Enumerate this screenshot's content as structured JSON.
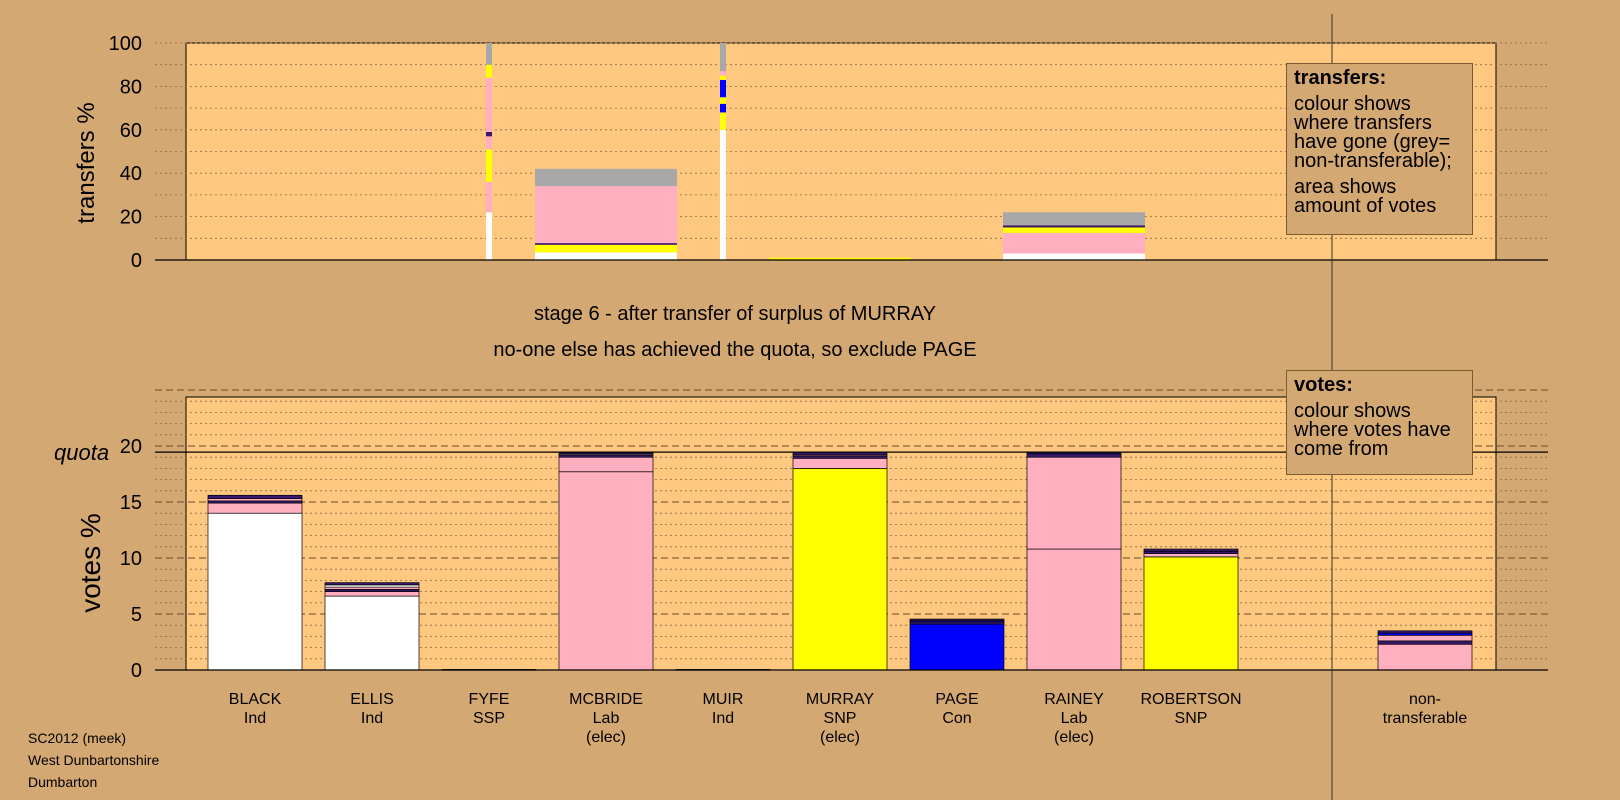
{
  "header": {
    "stage": "stage 6 - after transfer of surplus of MURRAY",
    "note": "no-one else has achieved the quota, so exclude PAGE"
  },
  "legends": {
    "transfers": {
      "title": "transfers:",
      "line1": "colour shows where transfers have gone (grey= non-transferable);",
      "line2": "area shows amount of votes"
    },
    "votes": {
      "title": "votes:",
      "line1": "colour shows where votes have come from"
    }
  },
  "footer": {
    "line1": "SC2012 (meek)",
    "line2": "West Dunbartonshire",
    "line3": "Dumbarton"
  },
  "colors": {
    "background": "#d4a872",
    "plot_background": "#ffc880",
    "Ind": "#ffffff",
    "SNP": "#ffff00",
    "Lab": "#ffafc0",
    "Con": "#0000ff",
    "SSP": "#800000",
    "non_transferable": "#a8a8a8",
    "other": "#3a1870"
  },
  "chart_data": [
    {
      "type": "bar",
      "stacked": true,
      "title": "",
      "ylabel": "transfers %",
      "ylim": [
        0,
        100
      ],
      "yticks": [
        0,
        20,
        40,
        60,
        80,
        100
      ],
      "grid": true,
      "legend_position": "top-right",
      "series": [
        {
          "from": "FYFE",
          "width": "thin",
          "segments": [
            {
              "color": "Ind",
              "value": 22
            },
            {
              "color": "Lab",
              "value": 14
            },
            {
              "color": "SNP",
              "value": 15
            },
            {
              "color": "Lab",
              "value": 6
            },
            {
              "color": "other",
              "value": 2
            },
            {
              "color": "Lab",
              "value": 25
            },
            {
              "color": "SNP",
              "value": 6
            },
            {
              "color": "non_transferable",
              "value": 10
            }
          ]
        },
        {
          "from": "MCBRIDE",
          "width": "wide",
          "segments": [
            {
              "color": "Ind",
              "value": 3.5
            },
            {
              "color": "SNP",
              "value": 3.5
            },
            {
              "color": "other",
              "value": 0.8
            },
            {
              "color": "Lab",
              "value": 26.2
            },
            {
              "color": "non_transferable",
              "value": 8
            }
          ]
        },
        {
          "from": "MUIR",
          "width": "thin",
          "segments": [
            {
              "color": "Ind",
              "value": 60
            },
            {
              "color": "SNP",
              "value": 8
            },
            {
              "color": "Con",
              "value": 4
            },
            {
              "color": "SNP",
              "value": 3
            },
            {
              "color": "Con",
              "value": 8
            },
            {
              "color": "SNP",
              "value": 2
            },
            {
              "color": "Lab",
              "value": 2
            },
            {
              "color": "non_transferable",
              "value": 13
            }
          ]
        },
        {
          "from": "MURRAY",
          "width": "wide",
          "segments": [
            {
              "color": "SNP",
              "value": 1
            }
          ]
        },
        {
          "from": "RAINEY",
          "width": "wide",
          "segments": [
            {
              "color": "Ind",
              "value": 3
            },
            {
              "color": "Lab",
              "value": 9.5
            },
            {
              "color": "SNP",
              "value": 2.5
            },
            {
              "color": "other",
              "value": 1
            },
            {
              "color": "non_transferable",
              "value": 6
            }
          ]
        }
      ]
    },
    {
      "type": "bar",
      "stacked": true,
      "title": "",
      "ylabel": "votes %",
      "ylim": [
        0,
        25
      ],
      "yticks": [
        0,
        5,
        10,
        15,
        20
      ],
      "quota": 19.45,
      "quota_label": "quota",
      "grid": true,
      "legend_position": "top-right",
      "categories": [
        [
          "BLACK",
          "Ind",
          ""
        ],
        [
          "ELLIS",
          "Ind",
          ""
        ],
        [
          "FYFE",
          "SSP",
          ""
        ],
        [
          "MCBRIDE",
          "Lab",
          "(elec)"
        ],
        [
          "MUIR",
          "Ind",
          ""
        ],
        [
          "MURRAY",
          "SNP",
          "(elec)"
        ],
        [
          "PAGE",
          "Con",
          ""
        ],
        [
          "RAINEY",
          "Lab",
          "(elec)"
        ],
        [
          "ROBERTSON",
          "SNP",
          ""
        ],
        [
          "",
          "",
          ""
        ],
        [
          "non-",
          "transferable",
          ""
        ]
      ],
      "stacks": [
        [
          {
            "color": "Ind",
            "value": 14.0
          },
          {
            "color": "Lab",
            "value": 0.9
          },
          {
            "color": "other",
            "value": 0.2
          },
          {
            "color": "Lab",
            "value": 0.2
          },
          {
            "color": "other",
            "value": 0.3
          }
        ],
        [
          {
            "color": "Ind",
            "value": 6.6
          },
          {
            "color": "Lab",
            "value": 0.4
          },
          {
            "color": "other",
            "value": 0.2
          },
          {
            "color": "Lab",
            "value": 0.2
          },
          {
            "color": "Ind",
            "value": 0.2
          },
          {
            "color": "other",
            "value": 0.2
          }
        ],
        [
          {
            "color": "SSP",
            "value": 0.05
          }
        ],
        [
          {
            "color": "Lab",
            "value": 17.7
          },
          {
            "color": "Lab",
            "value": 1.3
          },
          {
            "color": "other",
            "value": 0.2
          },
          {
            "color": "Lab",
            "value": 0.1
          },
          {
            "color": "other",
            "value": 0.15
          }
        ],
        [
          {
            "color": "Ind",
            "value": 0.05
          }
        ],
        [
          {
            "color": "SNP",
            "value": 18.0
          },
          {
            "color": "Lab",
            "value": 0.9
          },
          {
            "color": "other",
            "value": 0.2
          },
          {
            "color": "Lab",
            "value": 0.1
          },
          {
            "color": "other",
            "value": 0.25
          }
        ],
        [
          {
            "color": "Con",
            "value": 4.1
          },
          {
            "color": "other",
            "value": 0.2
          },
          {
            "color": "Con",
            "value": 0.1
          },
          {
            "color": "other",
            "value": 0.15
          }
        ],
        [
          {
            "color": "Lab",
            "value": 10.8
          },
          {
            "color": "Lab",
            "value": 8.2
          },
          {
            "color": "other",
            "value": 0.3
          },
          {
            "color": "other",
            "value": 0.15
          }
        ],
        [
          {
            "color": "SNP",
            "value": 10.1
          },
          {
            "color": "Lab",
            "value": 0.3
          },
          {
            "color": "other",
            "value": 0.2
          },
          {
            "color": "other",
            "value": 0.2
          }
        ],
        [],
        [
          {
            "color": "Lab",
            "value": 2.3
          },
          {
            "color": "other",
            "value": 0.3
          },
          {
            "color": "Lab",
            "value": 0.5
          },
          {
            "color": "Con",
            "value": 0.2
          },
          {
            "color": "other",
            "value": 0.2
          }
        ]
      ]
    }
  ]
}
